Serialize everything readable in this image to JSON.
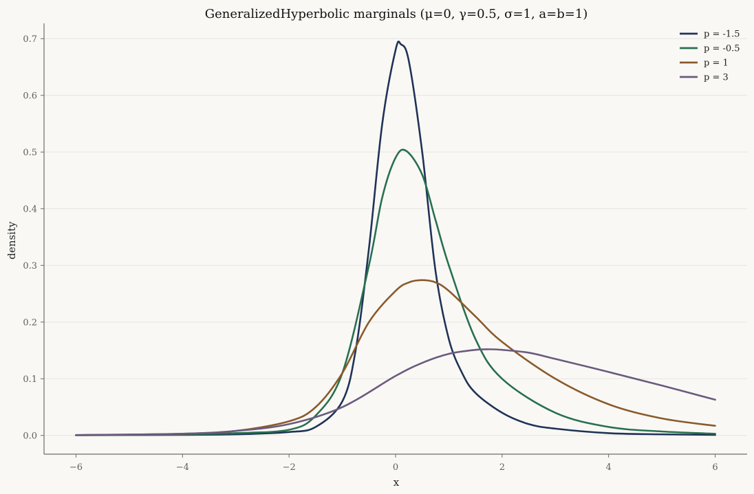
{
  "chart_data": {
    "type": "line",
    "title": "GeneralizedHyperbolic marginals (μ=0, γ=0.5, σ=1, a=b=1)",
    "xlabel": "x",
    "ylabel": "density",
    "xlim": [
      -6.6,
      6.6
    ],
    "ylim": [
      -0.033,
      0.727
    ],
    "xticks": [
      -6,
      -4,
      -2,
      0,
      2,
      4,
      6
    ],
    "xtick_labels": [
      "−6",
      "−4",
      "−2",
      "0",
      "2",
      "4",
      "6"
    ],
    "yticks": [
      0.0,
      0.1,
      0.2,
      0.3,
      0.4,
      0.5,
      0.6,
      0.7
    ],
    "ytick_labels": [
      "0.0",
      "0.1",
      "0.2",
      "0.3",
      "0.4",
      "0.5",
      "0.6",
      "0.7"
    ],
    "grid": "horizontal",
    "legend_position": "top-right",
    "series": [
      {
        "name": "p = -1.5",
        "color": "#1f3357",
        "x": [
          -6,
          -4,
          -3,
          -2,
          -1.5,
          -1,
          -0.75,
          -0.5,
          -0.25,
          0,
          0.1,
          0.25,
          0.5,
          0.75,
          1,
          1.25,
          1.5,
          2,
          2.5,
          3,
          4,
          5,
          6
        ],
        "y": [
          0.0005,
          0.001,
          0.002,
          0.006,
          0.015,
          0.06,
          0.15,
          0.33,
          0.55,
          0.68,
          0.69,
          0.66,
          0.5,
          0.29,
          0.17,
          0.11,
          0.075,
          0.04,
          0.02,
          0.012,
          0.004,
          0.002,
          0.001
        ]
      },
      {
        "name": "p = -0.5",
        "color": "#28704f",
        "x": [
          -6,
          -4,
          -3,
          -2,
          -1.5,
          -1,
          -0.5,
          -0.25,
          0,
          0.2,
          0.5,
          0.75,
          1,
          1.5,
          2,
          3,
          4,
          5,
          6
        ],
        "y": [
          0.0005,
          0.0015,
          0.004,
          0.01,
          0.035,
          0.11,
          0.3,
          0.42,
          0.49,
          0.502,
          0.46,
          0.38,
          0.3,
          0.17,
          0.1,
          0.04,
          0.015,
          0.007,
          0.003
        ]
      },
      {
        "name": "p = 1",
        "color": "#8a5a2b",
        "x": [
          -6,
          -4,
          -3,
          -2,
          -1.5,
          -1,
          -0.5,
          0,
          0.25,
          0.5,
          0.75,
          1,
          1.5,
          2,
          3,
          4,
          5,
          6
        ],
        "y": [
          0.0008,
          0.003,
          0.008,
          0.025,
          0.05,
          0.11,
          0.2,
          0.255,
          0.27,
          0.274,
          0.27,
          0.255,
          0.21,
          0.165,
          0.1,
          0.055,
          0.03,
          0.017
        ]
      },
      {
        "name": "p = 3",
        "color": "#6b5a7e",
        "x": [
          -6,
          -4,
          -3,
          -2,
          -1,
          0,
          0.5,
          1,
          1.5,
          1.8,
          2,
          2.5,
          3,
          4,
          5,
          6
        ],
        "y": [
          0.0005,
          0.003,
          0.008,
          0.02,
          0.05,
          0.105,
          0.128,
          0.144,
          0.151,
          0.152,
          0.151,
          0.146,
          0.135,
          0.112,
          0.088,
          0.063
        ]
      }
    ]
  }
}
